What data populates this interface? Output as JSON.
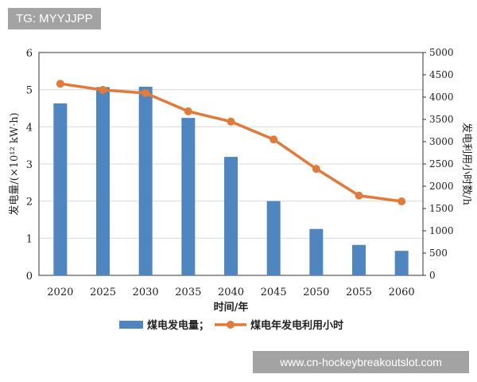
{
  "watermarks": {
    "top_left": "TG: MYYJJPP",
    "bottom_right": "www.cn-hockeybreakoutslot.com"
  },
  "chart_data": {
    "type": "bar+line",
    "categories": [
      "2020",
      "2025",
      "2030",
      "2035",
      "2040",
      "2045",
      "2050",
      "2055",
      "2060"
    ],
    "xlabel": "时间/年",
    "ylabel_left": "发电量/(×10¹² kW·h)",
    "ylabel_right": "发电利用小时数/h",
    "ylim_left": [
      0,
      6
    ],
    "ylim_right": [
      0,
      5000
    ],
    "yticks_left": [
      "0",
      "1",
      "2",
      "3",
      "4",
      "5",
      "6"
    ],
    "yticks_right": [
      "0",
      "500",
      "1000",
      "1500",
      "2000",
      "2500",
      "3000",
      "3500",
      "4000",
      "4500",
      "5000"
    ],
    "grid": true,
    "legend_position": "bottom",
    "series": [
      {
        "name": "煤电发电量；",
        "type": "bar",
        "axis": "left",
        "color": "#4f86c0",
        "values": [
          4.63,
          5.07,
          5.08,
          4.24,
          3.19,
          2.0,
          1.25,
          0.82,
          0.66
        ]
      },
      {
        "name": "煤电年发电利用小时",
        "type": "line",
        "axis": "right",
        "color": "#e07b3b",
        "values": [
          4300,
          4160,
          4090,
          3680,
          3450,
          3050,
          2390,
          1790,
          1660
        ]
      }
    ]
  }
}
